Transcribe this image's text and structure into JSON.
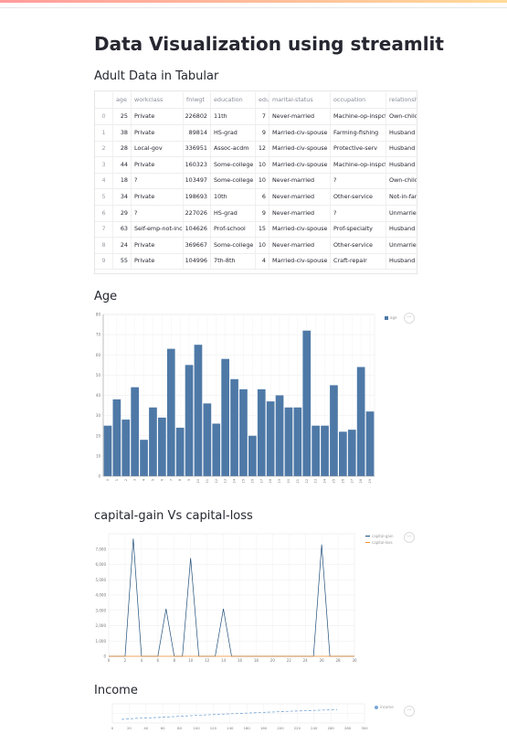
{
  "page": {
    "title": "Data Visualization using streamlit"
  },
  "sections": {
    "table_heading": "Adult Data in Tabular",
    "age_heading": "Age",
    "capital_heading": "capital-gain Vs capital-loss",
    "income_heading": "Income"
  },
  "table": {
    "columns": [
      "",
      "age",
      "workclass",
      "fnlwgt",
      "education",
      "educ",
      "marital-status",
      "occupation",
      "relationsh"
    ],
    "rows": [
      [
        "0",
        "25",
        "Private",
        "226802",
        "11th",
        "7",
        "Never-married",
        "Machine-op-inspct",
        "Own-child"
      ],
      [
        "1",
        "38",
        "Private",
        "89814",
        "HS-grad",
        "9",
        "Married-civ-spouse",
        "Farming-fishing",
        "Husband"
      ],
      [
        "2",
        "28",
        "Local-gov",
        "336951",
        "Assoc-acdm",
        "12",
        "Married-civ-spouse",
        "Protective-serv",
        "Husband"
      ],
      [
        "3",
        "44",
        "Private",
        "160323",
        "Some-college",
        "10",
        "Married-civ-spouse",
        "Machine-op-inspct",
        "Husband"
      ],
      [
        "4",
        "18",
        "?",
        "103497",
        "Some-college",
        "10",
        "Never-married",
        "?",
        "Own-child"
      ],
      [
        "5",
        "34",
        "Private",
        "198693",
        "10th",
        "6",
        "Never-married",
        "Other-service",
        "Not-in-fam"
      ],
      [
        "6",
        "29",
        "?",
        "227026",
        "HS-grad",
        "9",
        "Never-married",
        "?",
        "Unmarried"
      ],
      [
        "7",
        "63",
        "Self-emp-not-inc",
        "104626",
        "Prof-school",
        "15",
        "Married-civ-spouse",
        "Prof-specialty",
        "Husband"
      ],
      [
        "8",
        "24",
        "Private",
        "369667",
        "Some-college",
        "10",
        "Never-married",
        "Other-service",
        "Unmarried"
      ],
      [
        "9",
        "55",
        "Private",
        "104996",
        "7th-8th",
        "4",
        "Married-civ-spouse",
        "Craft-repair",
        "Husband"
      ]
    ]
  },
  "colors": {
    "bar": "#4e79a7",
    "line1": "#1f4e79",
    "line2": "#f28e2b",
    "accent": "#ff4b4b"
  },
  "charts": {
    "menu_glyph": "···",
    "age": {
      "legend": "age",
      "y_ticks": [
        "0",
        "10",
        "20",
        "30",
        "40",
        "50",
        "60",
        "70",
        "80"
      ]
    },
    "capital": {
      "legend": [
        "capital-gain",
        "capital-loss"
      ],
      "y_ticks": [
        "0",
        "1,000",
        "2,000",
        "3,000",
        "4,000",
        "5,000",
        "6,000",
        "7,000"
      ]
    },
    "income": {
      "legend": "income"
    }
  },
  "chart_data": [
    {
      "type": "bar",
      "title": "Age",
      "categories": [
        "0",
        "1",
        "2",
        "3",
        "4",
        "5",
        "6",
        "7",
        "8",
        "9",
        "10",
        "11",
        "12",
        "13",
        "14",
        "15",
        "16",
        "17",
        "18",
        "19",
        "20",
        "21",
        "22",
        "23",
        "24",
        "25",
        "26",
        "27",
        "28",
        "29"
      ],
      "series": [
        {
          "name": "age",
          "values": [
            25,
            38,
            28,
            44,
            18,
            34,
            29,
            63,
            24,
            55,
            65,
            36,
            26,
            58,
            48,
            43,
            20,
            43,
            37,
            40,
            34,
            34,
            72,
            25,
            25,
            45,
            22,
            23,
            54,
            32
          ]
        }
      ],
      "ylim": [
        0,
        80
      ]
    },
    {
      "type": "line",
      "title": "capital-gain Vs capital-loss",
      "x": [
        0,
        1,
        2,
        3,
        4,
        5,
        6,
        7,
        8,
        9,
        10,
        11,
        12,
        13,
        14,
        15,
        16,
        17,
        18,
        19,
        20,
        21,
        22,
        23,
        24,
        25,
        26,
        27,
        28,
        29,
        30
      ],
      "series": [
        {
          "name": "capital-gain",
          "values": [
            0,
            0,
            0,
            7688,
            0,
            0,
            0,
            3103,
            0,
            0,
            6418,
            0,
            0,
            0,
            3103,
            0,
            0,
            0,
            0,
            0,
            0,
            0,
            0,
            0,
            0,
            0,
            7298,
            0,
            0,
            0,
            0
          ]
        },
        {
          "name": "capital-loss",
          "values": [
            0,
            0,
            0,
            0,
            0,
            0,
            0,
            0,
            0,
            0,
            0,
            0,
            0,
            0,
            0,
            0,
            0,
            0,
            0,
            0,
            0,
            0,
            0,
            0,
            0,
            0,
            0,
            0,
            0,
            0,
            0
          ]
        }
      ],
      "xlim": [
        0,
        30
      ],
      "ylim": [
        0,
        8000
      ],
      "x_ticks": [
        "0",
        "2",
        "4",
        "6",
        "8",
        "10",
        "12",
        "14",
        "16",
        "18",
        "20",
        "22",
        "24",
        "26",
        "28",
        "30"
      ]
    },
    {
      "type": "line",
      "title": "Income",
      "x_ticks": [
        "0",
        "20",
        "40",
        "60",
        "80",
        "100",
        "120",
        "140",
        "160",
        "180",
        "200",
        "220",
        "240",
        "260",
        "280",
        "300"
      ],
      "series": [
        {
          "name": "income",
          "values": [
            0,
            0.1,
            0.15,
            0.22,
            0.3,
            0.38,
            0.45,
            0.52,
            0.58,
            0.64,
            0.7,
            0.76,
            0.82,
            0.87,
            0.92,
            0.96
          ]
        }
      ]
    }
  ]
}
